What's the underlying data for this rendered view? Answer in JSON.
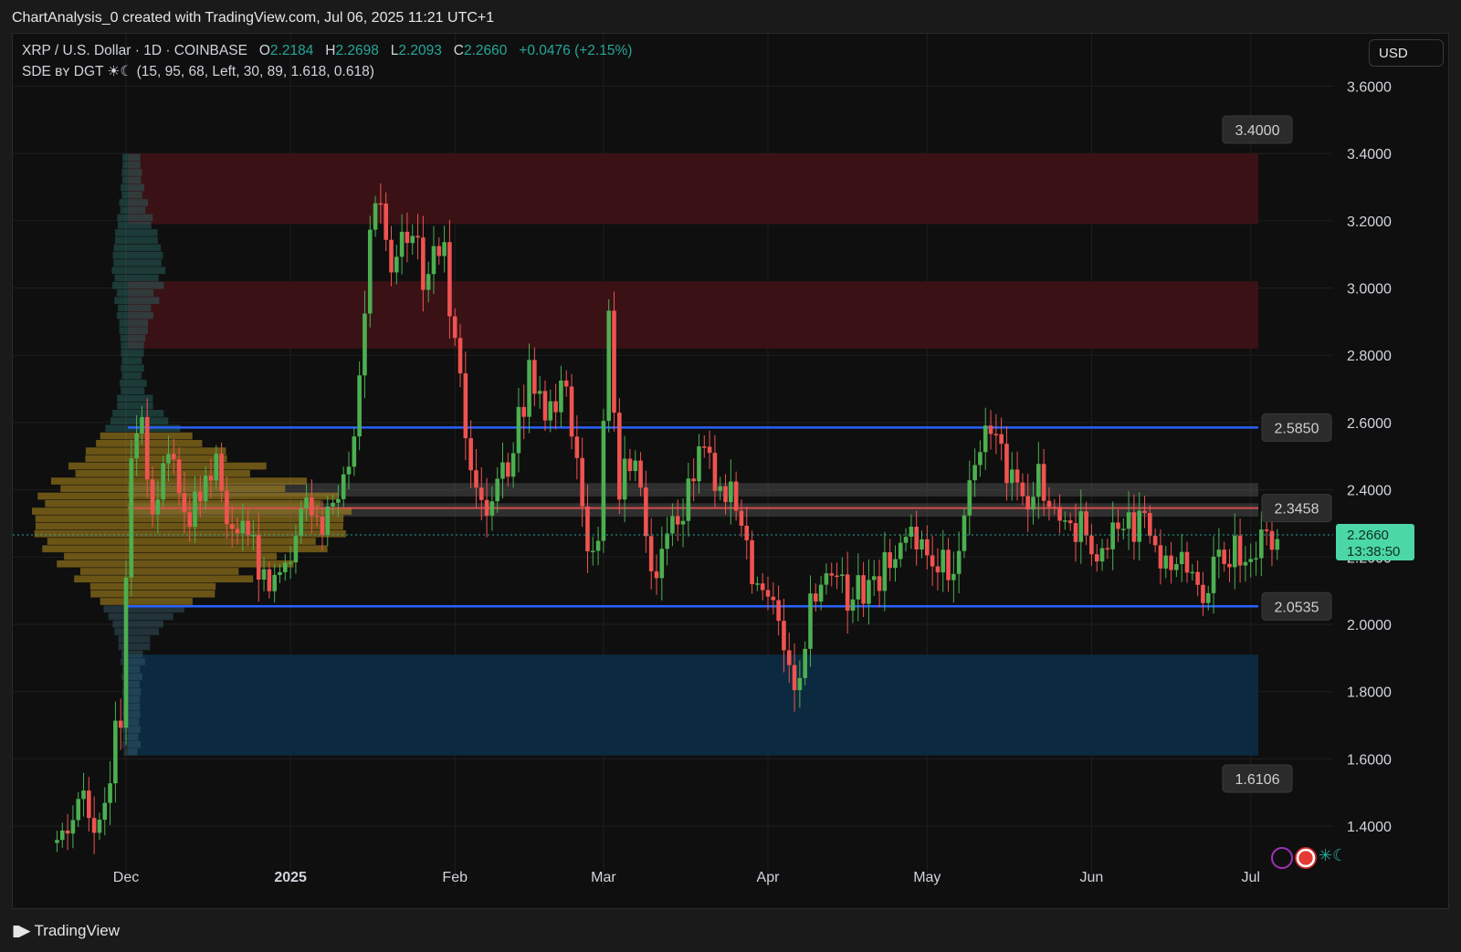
{
  "header": {
    "caption": "ChartAnalysis_0 created with TradingView.com, Jul 06, 2025 11:21 UTC+1"
  },
  "legend": {
    "symbol": "XRP / U.S. Dollar · 1D · COINBASE",
    "open_label": "O",
    "open": "2.2184",
    "high_label": "H",
    "high": "2.2698",
    "low_label": "L",
    "low": "2.2093",
    "close_label": "C",
    "close": "2.2660",
    "change": "+0.0476 (+2.15%)",
    "indicator": "SDE ʙʏ DGT ☀☾ (15, 95, 68, Left, 30, 89, 1.618, 0.618)"
  },
  "currency_button": "USD",
  "footer": {
    "brand": "TradingView"
  },
  "colors": {
    "up": "#26a69a",
    "down": "#ef5350",
    "up_bright": "#4caf50",
    "supply_zone": "#3a1215",
    "demand_zone": "#0c2a3f",
    "level_line": "#2962ff",
    "mid_level": "#ef5350",
    "volume_profile_mid": "#b8901e",
    "volume_profile_top": "#2a6e6a"
  },
  "chart_data": {
    "type": "candlestick",
    "title": "XRP / U.S. Dollar · 1D · COINBASE",
    "x_ticks": [
      "Dec",
      "2025",
      "Feb",
      "Mar",
      "Apr",
      "May",
      "Jun",
      "Jul"
    ],
    "y_ticks": [
      "1.4000",
      "1.6000",
      "1.8000",
      "2.0000",
      "2.2000",
      "2.4000",
      "2.6000",
      "2.8000",
      "3.0000",
      "3.2000",
      "3.4000",
      "3.6000"
    ],
    "ylim": [
      1.3,
      3.7
    ],
    "grid": true,
    "last_price": "2.2660",
    "countdown": "13:38:50",
    "levels": [
      {
        "label": "3.4000",
        "price": 3.4
      },
      {
        "label": "2.5850",
        "price": 2.585
      },
      {
        "label": "2.3458",
        "price": 2.3458
      },
      {
        "label": "2.0535",
        "price": 2.0535
      },
      {
        "label": "1.6106",
        "price": 1.6106
      }
    ],
    "zones": [
      {
        "type": "supply",
        "from": 3.19,
        "to": 3.4
      },
      {
        "type": "supply",
        "from": 2.82,
        "to": 3.02
      },
      {
        "type": "neutral",
        "from": 2.38,
        "to": 2.42
      },
      {
        "type": "neutral",
        "from": 2.32,
        "to": 2.36
      },
      {
        "type": "demand",
        "from": 1.61,
        "to": 1.91
      }
    ],
    "price_path": [
      [
        "Nov 18",
        1.35
      ],
      [
        "Nov 22",
        1.48
      ],
      [
        "Nov 26",
        1.42
      ],
      [
        "Nov 30",
        1.75
      ],
      [
        "Dec 02",
        2.45
      ],
      [
        "Dec 04",
        2.6
      ],
      [
        "Dec 06",
        2.35
      ],
      [
        "Dec 09",
        2.55
      ],
      [
        "Dec 12",
        2.28
      ],
      [
        "Dec 15",
        2.4
      ],
      [
        "Dec 18",
        2.5
      ],
      [
        "Dec 21",
        2.24
      ],
      [
        "Dec 24",
        2.28
      ],
      [
        "Dec 28",
        2.1
      ],
      [
        "Jan 01",
        2.22
      ],
      [
        "Jan 04",
        2.4
      ],
      [
        "Jan 07",
        2.3
      ],
      [
        "Jan 10",
        2.4
      ],
      [
        "Jan 13",
        2.55
      ],
      [
        "Jan 16",
        3.2
      ],
      [
        "Jan 18",
        3.3
      ],
      [
        "Jan 20",
        3.02
      ],
      [
        "Jan 23",
        3.18
      ],
      [
        "Jan 26",
        3.05
      ],
      [
        "Jan 30",
        3.1
      ],
      [
        "Feb 02",
        2.72
      ],
      [
        "Feb 04",
        2.5
      ],
      [
        "Feb 07",
        2.38
      ],
      [
        "Feb 11",
        2.45
      ],
      [
        "Feb 15",
        2.75
      ],
      [
        "Feb 18",
        2.62
      ],
      [
        "Feb 22",
        2.72
      ],
      [
        "Feb 25",
        2.3
      ],
      [
        "Feb 28",
        2.22
      ],
      [
        "Mar 02",
        2.95
      ],
      [
        "Mar 04",
        2.4
      ],
      [
        "Mar 07",
        2.5
      ],
      [
        "Mar 11",
        2.1
      ],
      [
        "Mar 14",
        2.3
      ],
      [
        "Mar 17",
        2.4
      ],
      [
        "Mar 19",
        2.55
      ],
      [
        "Mar 23",
        2.4
      ],
      [
        "Mar 26",
        2.35
      ],
      [
        "Mar 29",
        2.13
      ],
      [
        "Apr 02",
        2.1
      ],
      [
        "Apr 07",
        1.8
      ],
      [
        "Apr 09",
        2.05
      ],
      [
        "Apr 12",
        2.14
      ],
      [
        "Apr 16",
        2.1
      ],
      [
        "Apr 20",
        2.08
      ],
      [
        "Apr 25",
        2.22
      ],
      [
        "Apr 28",
        2.27
      ],
      [
        "May 02",
        2.22
      ],
      [
        "May 05",
        2.15
      ],
      [
        "May 09",
        2.38
      ],
      [
        "May 12",
        2.55
      ],
      [
        "May 15",
        2.5
      ],
      [
        "May 18",
        2.38
      ],
      [
        "May 22",
        2.42
      ],
      [
        "May 26",
        2.33
      ],
      [
        "May 30",
        2.28
      ],
      [
        "Jun 02",
        2.2
      ],
      [
        "Jun 05",
        2.25
      ],
      [
        "Jun 08",
        2.28
      ],
      [
        "Jun 11",
        2.3
      ],
      [
        "Jun 14",
        2.2
      ],
      [
        "Jun 17",
        2.18
      ],
      [
        "Jun 20",
        2.16
      ],
      [
        "Jun 22",
        2.04
      ],
      [
        "Jun 24",
        2.15
      ],
      [
        "Jun 27",
        2.2
      ],
      [
        "Jun 30",
        2.22
      ],
      [
        "Jul 03",
        2.24
      ],
      [
        "Jul 06",
        2.266
      ]
    ]
  }
}
